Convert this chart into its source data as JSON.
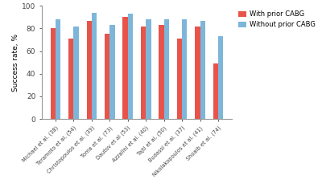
{
  "categories": [
    "Michael et al. (38)",
    "Teramoto et al. (54)",
    "Christopoulos et al. (39)",
    "Toma et al. (73)",
    "Dautov et al (53)",
    "Azzalini et al. (40)",
    "Tajti et al. (50)",
    "Budassi et al. (37)",
    "Nikolakopoulos et al. (41)",
    "Shoaib et al. (74)"
  ],
  "with_prior_cabg": [
    80,
    71,
    87,
    75,
    90,
    82,
    83,
    71,
    82,
    49
  ],
  "without_prior_cabg": [
    88,
    82,
    94,
    83,
    93,
    88,
    88,
    88,
    87,
    73
  ],
  "color_with": "#E8534A",
  "color_without": "#7EB6D9",
  "ylabel": "Success rate, %",
  "ylim": [
    0,
    100
  ],
  "yticks": [
    0,
    20,
    40,
    60,
    80,
    100
  ],
  "legend_with": "With prior CABG",
  "legend_without": "Without prior CABG",
  "bar_width": 0.28,
  "background_color": "#ffffff"
}
